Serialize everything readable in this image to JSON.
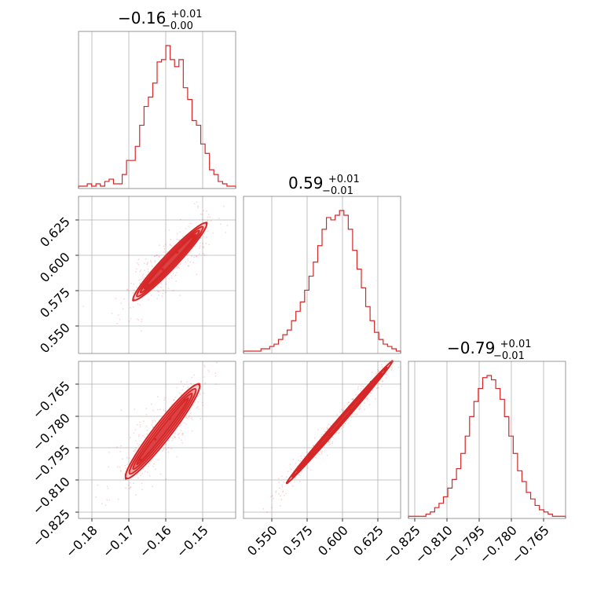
{
  "chart_data": {
    "type": "corner",
    "color": "#d62728",
    "grid": true,
    "parameters": [
      {
        "index": 0,
        "title": {
          "median": "−0.16",
          "plus": "+0.01",
          "minus": "−0.00"
        },
        "range": [
          -0.183,
          -0.14
        ],
        "ticks": [
          -0.18,
          -0.17,
          -0.16,
          -0.15
        ],
        "tick_labels": [
          "−0.18",
          "−0.17",
          "−0.16",
          "−0.15"
        ],
        "hist_counts": [
          1,
          1,
          2,
          1,
          2,
          1,
          3,
          4,
          2,
          2,
          6,
          12,
          12,
          18,
          27,
          35,
          39,
          45,
          54,
          55,
          61,
          55,
          52,
          55,
          43,
          38,
          29,
          27,
          19,
          15,
          8,
          6,
          3,
          2,
          1,
          1
        ]
      },
      {
        "index": 1,
        "title": {
          "median": "0.59",
          "plus": "+0.01",
          "minus": "−0.01"
        },
        "range": [
          0.529,
          0.641
        ],
        "ticks": [
          0.55,
          0.575,
          0.6,
          0.625
        ],
        "tick_labels": [
          "0.550",
          "0.575",
          "0.600",
          "0.625"
        ],
        "hist_counts": [
          1,
          1,
          1,
          1,
          2,
          2,
          3,
          4,
          6,
          8,
          10,
          14,
          18,
          22,
          27,
          33,
          39,
          46,
          53,
          58,
          57,
          59,
          61,
          59,
          53,
          44,
          36,
          28,
          20,
          14,
          9,
          6,
          4,
          3,
          2,
          1
        ]
      },
      {
        "index": 2,
        "title": {
          "median": "−0.79",
          "plus": "+0.01",
          "minus": "−0.01"
        },
        "range": [
          -0.8275,
          -0.759
        ],
        "ticks": [
          -0.825,
          -0.81,
          -0.795,
          -0.78,
          -0.765
        ],
        "tick_labels": [
          "−0.825",
          "−0.810",
          "−0.795",
          "−0.780",
          "−0.765"
        ],
        "hist_counts": [
          1,
          1,
          1,
          1,
          2,
          3,
          5,
          7,
          10,
          14,
          18,
          23,
          30,
          38,
          47,
          54,
          60,
          65,
          66,
          64,
          60,
          55,
          47,
          38,
          30,
          22,
          17,
          12,
          9,
          6,
          4,
          3,
          2,
          1,
          1,
          1
        ]
      }
    ],
    "pairs": [
      {
        "x_param": 0,
        "y_param": 1,
        "points": [
          [
            -0.168,
            0.567
          ],
          [
            -0.164,
            0.578
          ],
          [
            -0.16,
            0.589
          ],
          [
            -0.156,
            0.601
          ],
          [
            -0.152,
            0.612
          ],
          [
            -0.148,
            0.622
          ]
        ]
      },
      {
        "x_param": 0,
        "y_param": 2,
        "points": [
          [
            -0.17,
            -0.81
          ],
          [
            -0.166,
            -0.802
          ],
          [
            -0.162,
            -0.793
          ],
          [
            -0.158,
            -0.784
          ],
          [
            -0.154,
            -0.776
          ],
          [
            -0.15,
            -0.769
          ]
        ]
      },
      {
        "x_param": 1,
        "y_param": 2,
        "points": [
          [
            0.56,
            -0.812
          ],
          [
            0.575,
            -0.801
          ],
          [
            0.59,
            -0.791
          ],
          [
            0.605,
            -0.78
          ],
          [
            0.62,
            -0.768
          ],
          [
            0.635,
            -0.759
          ]
        ]
      }
    ]
  }
}
